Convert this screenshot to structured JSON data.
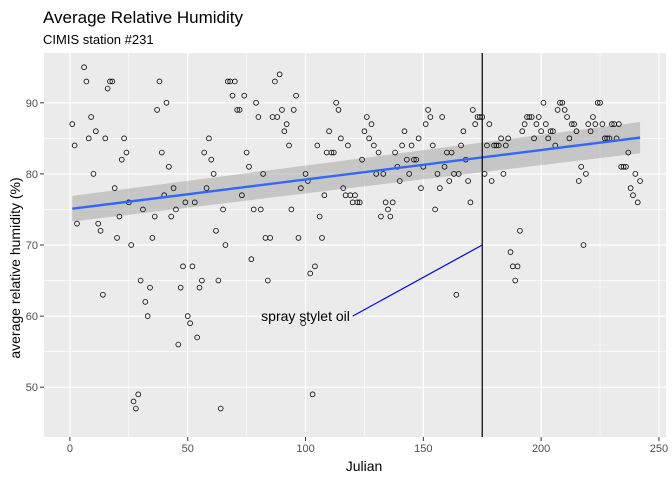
{
  "chart_data": {
    "type": "scatter",
    "title": "Average Relative Humidity",
    "subtitle": "CIMIS station #231",
    "xlabel": "Julian",
    "ylabel": "average relative humidity (%)",
    "xlim": [
      -11,
      253
    ],
    "ylim": [
      43,
      97
    ],
    "xticks": [
      0,
      50,
      100,
      150,
      200,
      250
    ],
    "yticks": [
      50,
      60,
      70,
      80,
      90
    ],
    "grid": true,
    "panel_color": "#ebebeb",
    "point_color": "#000000",
    "trend": {
      "type": "linear",
      "color": "#3366ff",
      "band_color": "#999999",
      "x": [
        1,
        242
      ],
      "y": [
        75.1,
        85.1
      ],
      "band_upper": [
        76.9,
        87.3
      ],
      "band_lower": [
        73.3,
        82.9
      ]
    },
    "vline": {
      "x": 175,
      "color": "#000000"
    },
    "annotation": {
      "text": "spray stylet oil",
      "text_x": 100,
      "text_y": 60,
      "line_from": [
        120,
        60
      ],
      "line_to": [
        175,
        70
      ],
      "line_color": "#0000ff"
    },
    "points": [
      [
        1,
        87
      ],
      [
        2,
        84
      ],
      [
        3,
        73
      ],
      [
        6,
        95
      ],
      [
        7,
        93
      ],
      [
        8,
        85
      ],
      [
        9,
        88
      ],
      [
        10,
        80
      ],
      [
        11,
        86
      ],
      [
        12,
        73
      ],
      [
        13,
        72
      ],
      [
        14,
        63
      ],
      [
        15,
        85
      ],
      [
        16,
        92
      ],
      [
        17,
        93
      ],
      [
        18,
        93
      ],
      [
        19,
        78
      ],
      [
        20,
        71
      ],
      [
        21,
        74
      ],
      [
        22,
        82
      ],
      [
        23,
        85
      ],
      [
        24,
        83
      ],
      [
        25,
        76
      ],
      [
        26,
        70
      ],
      [
        27,
        48
      ],
      [
        28,
        47
      ],
      [
        29,
        49
      ],
      [
        30,
        65
      ],
      [
        31,
        75
      ],
      [
        32,
        62
      ],
      [
        33,
        60
      ],
      [
        34,
        64
      ],
      [
        35,
        71
      ],
      [
        36,
        74
      ],
      [
        37,
        89
      ],
      [
        38,
        93
      ],
      [
        39,
        83
      ],
      [
        40,
        77
      ],
      [
        41,
        90
      ],
      [
        42,
        81
      ],
      [
        43,
        74
      ],
      [
        44,
        78
      ],
      [
        45,
        75
      ],
      [
        46,
        56
      ],
      [
        47,
        64
      ],
      [
        48,
        67
      ],
      [
        49,
        76
      ],
      [
        50,
        60
      ],
      [
        51,
        59
      ],
      [
        52,
        67
      ],
      [
        53,
        76
      ],
      [
        54,
        57
      ],
      [
        55,
        64
      ],
      [
        56,
        65
      ],
      [
        57,
        83
      ],
      [
        58,
        78
      ],
      [
        59,
        85
      ],
      [
        60,
        82
      ],
      [
        61,
        80
      ],
      [
        62,
        72
      ],
      [
        63,
        65
      ],
      [
        64,
        47
      ],
      [
        65,
        75
      ],
      [
        66,
        70
      ],
      [
        67,
        93
      ],
      [
        68,
        93
      ],
      [
        69,
        91
      ],
      [
        70,
        93
      ],
      [
        71,
        89
      ],
      [
        72,
        89
      ],
      [
        73,
        77
      ],
      [
        74,
        91
      ],
      [
        75,
        83
      ],
      [
        76,
        81
      ],
      [
        77,
        68
      ],
      [
        78,
        75
      ],
      [
        79,
        90
      ],
      [
        80,
        88
      ],
      [
        81,
        75
      ],
      [
        82,
        80
      ],
      [
        83,
        71
      ],
      [
        84,
        65
      ],
      [
        85,
        71
      ],
      [
        86,
        88
      ],
      [
        87,
        93
      ],
      [
        88,
        88
      ],
      [
        89,
        94
      ],
      [
        90,
        89
      ],
      [
        91,
        86
      ],
      [
        92,
        87
      ],
      [
        93,
        84
      ],
      [
        94,
        75
      ],
      [
        95,
        89
      ],
      [
        96,
        91
      ],
      [
        97,
        71
      ],
      [
        98,
        78
      ],
      [
        99,
        59
      ],
      [
        100,
        80
      ],
      [
        101,
        79
      ],
      [
        102,
        66
      ],
      [
        103,
        49
      ],
      [
        104,
        67
      ],
      [
        105,
        84
      ],
      [
        106,
        74
      ],
      [
        107,
        71
      ],
      [
        108,
        77
      ],
      [
        109,
        83
      ],
      [
        110,
        86
      ],
      [
        111,
        83
      ],
      [
        112,
        83
      ],
      [
        113,
        90
      ],
      [
        114,
        89
      ],
      [
        115,
        85
      ],
      [
        116,
        78
      ],
      [
        117,
        77
      ],
      [
        118,
        84
      ],
      [
        119,
        77
      ],
      [
        120,
        76
      ],
      [
        121,
        77
      ],
      [
        122,
        76
      ],
      [
        123,
        76
      ],
      [
        124,
        82
      ],
      [
        125,
        86
      ],
      [
        126,
        88
      ],
      [
        127,
        85
      ],
      [
        128,
        87
      ],
      [
        129,
        84
      ],
      [
        130,
        80
      ],
      [
        131,
        83
      ],
      [
        132,
        74
      ],
      [
        133,
        80
      ],
      [
        134,
        76
      ],
      [
        135,
        75
      ],
      [
        136,
        74
      ],
      [
        137,
        76
      ],
      [
        138,
        83
      ],
      [
        139,
        81
      ],
      [
        140,
        79
      ],
      [
        141,
        84
      ],
      [
        142,
        86
      ],
      [
        143,
        82
      ],
      [
        144,
        80
      ],
      [
        145,
        84
      ],
      [
        146,
        82
      ],
      [
        147,
        82
      ],
      [
        148,
        85
      ],
      [
        149,
        78
      ],
      [
        150,
        81
      ],
      [
        151,
        87
      ],
      [
        152,
        89
      ],
      [
        153,
        88
      ],
      [
        154,
        84
      ],
      [
        155,
        75
      ],
      [
        156,
        80
      ],
      [
        157,
        78
      ],
      [
        158,
        88
      ],
      [
        159,
        81
      ],
      [
        160,
        83
      ],
      [
        161,
        79
      ],
      [
        162,
        83
      ],
      [
        163,
        80
      ],
      [
        164,
        63
      ],
      [
        165,
        80
      ],
      [
        166,
        84
      ],
      [
        167,
        86
      ],
      [
        168,
        82
      ],
      [
        169,
        79
      ],
      [
        170,
        76
      ],
      [
        171,
        89
      ],
      [
        172,
        87
      ],
      [
        173,
        88
      ],
      [
        174,
        88
      ],
      [
        175,
        88
      ],
      [
        176,
        80
      ],
      [
        177,
        84
      ],
      [
        178,
        87
      ],
      [
        179,
        79
      ],
      [
        180,
        84
      ],
      [
        181,
        84
      ],
      [
        182,
        84
      ],
      [
        183,
        85
      ],
      [
        184,
        80
      ],
      [
        185,
        84
      ],
      [
        186,
        85
      ],
      [
        187,
        69
      ],
      [
        188,
        67
      ],
      [
        189,
        65
      ],
      [
        190,
        67
      ],
      [
        191,
        72
      ],
      [
        192,
        86
      ],
      [
        193,
        87
      ],
      [
        194,
        88
      ],
      [
        195,
        88
      ],
      [
        196,
        88
      ],
      [
        197,
        85
      ],
      [
        198,
        87
      ],
      [
        199,
        88
      ],
      [
        200,
        86
      ],
      [
        201,
        90
      ],
      [
        202,
        87
      ],
      [
        203,
        85
      ],
      [
        204,
        86
      ],
      [
        205,
        86
      ],
      [
        206,
        84
      ],
      [
        207,
        89
      ],
      [
        208,
        90
      ],
      [
        209,
        90
      ],
      [
        210,
        89
      ],
      [
        211,
        88
      ],
      [
        212,
        85
      ],
      [
        213,
        87
      ],
      [
        214,
        87
      ],
      [
        215,
        86
      ],
      [
        216,
        79
      ],
      [
        217,
        81
      ],
      [
        218,
        70
      ],
      [
        219,
        80
      ],
      [
        220,
        87
      ],
      [
        221,
        86
      ],
      [
        222,
        88
      ],
      [
        223,
        87
      ],
      [
        224,
        90
      ],
      [
        225,
        90
      ],
      [
        226,
        87
      ],
      [
        227,
        85
      ],
      [
        228,
        85
      ],
      [
        229,
        85
      ],
      [
        230,
        87
      ],
      [
        231,
        87
      ],
      [
        232,
        85
      ],
      [
        233,
        87
      ],
      [
        234,
        81
      ],
      [
        235,
        81
      ],
      [
        236,
        81
      ],
      [
        237,
        83
      ],
      [
        238,
        78
      ],
      [
        239,
        77
      ],
      [
        240,
        80
      ],
      [
        241,
        76
      ],
      [
        242,
        79
      ]
    ]
  }
}
